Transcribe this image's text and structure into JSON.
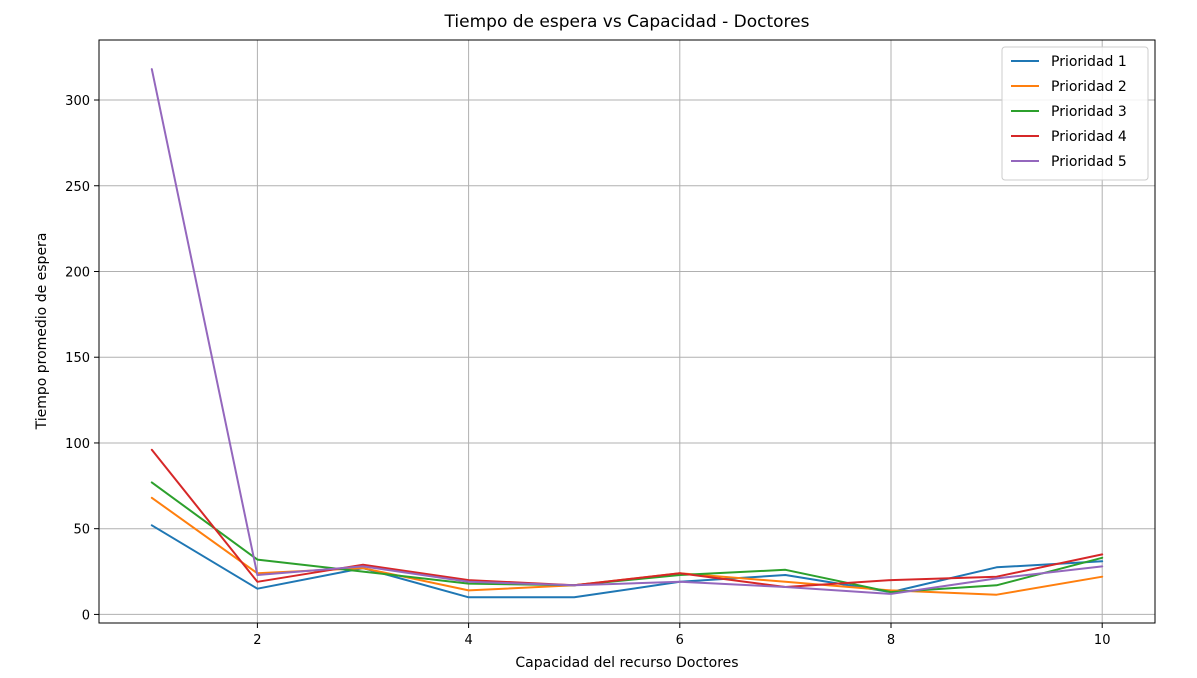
{
  "chart_data": {
    "type": "line",
    "title": "Tiempo de espera vs Capacidad - Doctores",
    "xlabel": "Capacidad del recurso Doctores",
    "ylabel": "Tiempo promedio de espera",
    "x": [
      1,
      2,
      3,
      4,
      5,
      6,
      7,
      8,
      9,
      10
    ],
    "xlim": [
      0.5,
      10.5
    ],
    "ylim": [
      -5,
      335
    ],
    "xticks": [
      2,
      4,
      6,
      8,
      10
    ],
    "yticks": [
      0,
      50,
      100,
      150,
      200,
      250,
      300
    ],
    "grid": true,
    "legend_position": "top-right",
    "series": [
      {
        "name": "Prioridad 1",
        "color": "#1f77b4",
        "values": [
          52,
          15,
          27,
          10,
          10,
          19,
          23,
          13,
          27.5,
          31
        ]
      },
      {
        "name": "Prioridad 2",
        "color": "#ff7f0e",
        "values": [
          68,
          24,
          27,
          14,
          17,
          24,
          19,
          14,
          11.5,
          22
        ]
      },
      {
        "name": "Prioridad 3",
        "color": "#2ca02c",
        "values": [
          77,
          32,
          25,
          18,
          17,
          23,
          26,
          13,
          17,
          33
        ]
      },
      {
        "name": "Prioridad 4",
        "color": "#d62728",
        "values": [
          96,
          19,
          29,
          20,
          17,
          24,
          16,
          20,
          22,
          35
        ]
      },
      {
        "name": "Prioridad 5",
        "color": "#9467bd",
        "values": [
          318,
          23,
          28,
          19,
          17,
          19,
          16,
          12,
          21,
          28
        ]
      }
    ]
  }
}
